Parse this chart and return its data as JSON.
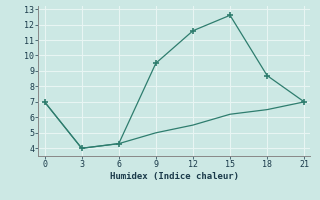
{
  "line1_x": [
    0,
    3,
    6,
    9,
    12,
    15,
    18,
    21
  ],
  "line1_y": [
    7,
    4,
    4.3,
    9.5,
    11.6,
    12.6,
    8.7,
    7.0
  ],
  "line2_x": [
    0,
    3,
    6,
    9,
    12,
    15,
    18,
    21
  ],
  "line2_y": [
    7,
    4,
    4.3,
    5.0,
    5.5,
    6.2,
    6.5,
    7.0
  ],
  "color": "#2e7d6e",
  "xlabel": "Humidex (Indice chaleur)",
  "xlim": [
    -0.5,
    21.5
  ],
  "ylim": [
    3.5,
    13.2
  ],
  "xticks": [
    0,
    3,
    6,
    9,
    12,
    15,
    18,
    21
  ],
  "yticks": [
    4,
    5,
    6,
    7,
    8,
    9,
    10,
    11,
    12,
    13
  ],
  "bg_color": "#cce8e4",
  "grid_color": "#e8f5f3",
  "label_color": "#1a3a4a"
}
